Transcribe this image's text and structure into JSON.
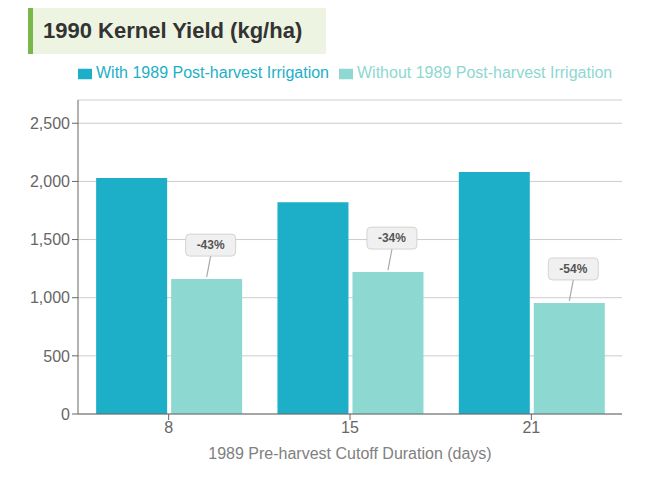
{
  "chart_data": {
    "type": "bar",
    "title": "1990 Kernel Yield (kg/ha)",
    "xlabel": "1989 Pre-harvest Cutoff Duration (days)",
    "categories": [
      "8",
      "15",
      "21"
    ],
    "series": [
      {
        "name": "With 1989 Post-harvest Irrigation",
        "color": "#1dafc8",
        "values": [
          2030,
          1820,
          2080
        ]
      },
      {
        "name": "Without 1989 Post-harvest Irrigation",
        "color": "#8dd8d0",
        "values": [
          1160,
          1220,
          955
        ]
      }
    ],
    "annotations": [
      {
        "text": "-43%",
        "x": "8",
        "series": "Without 1989 Post-harvest Irrigation"
      },
      {
        "text": "-34%",
        "x": "15",
        "series": "Without 1989 Post-harvest Irrigation"
      },
      {
        "text": "-54%",
        "x": "21",
        "series": "Without 1989 Post-harvest Irrigation"
      }
    ],
    "ylim": [
      0,
      2700
    ],
    "yticks": [
      0,
      500,
      {
        "value": 1000,
        "label": "1,000"
      },
      {
        "value": 1500,
        "label": "1,500"
      },
      {
        "value": 2000,
        "label": "2,000"
      },
      {
        "value": 2500,
        "label": "2,500"
      }
    ],
    "grid": true,
    "legend": "top"
  }
}
